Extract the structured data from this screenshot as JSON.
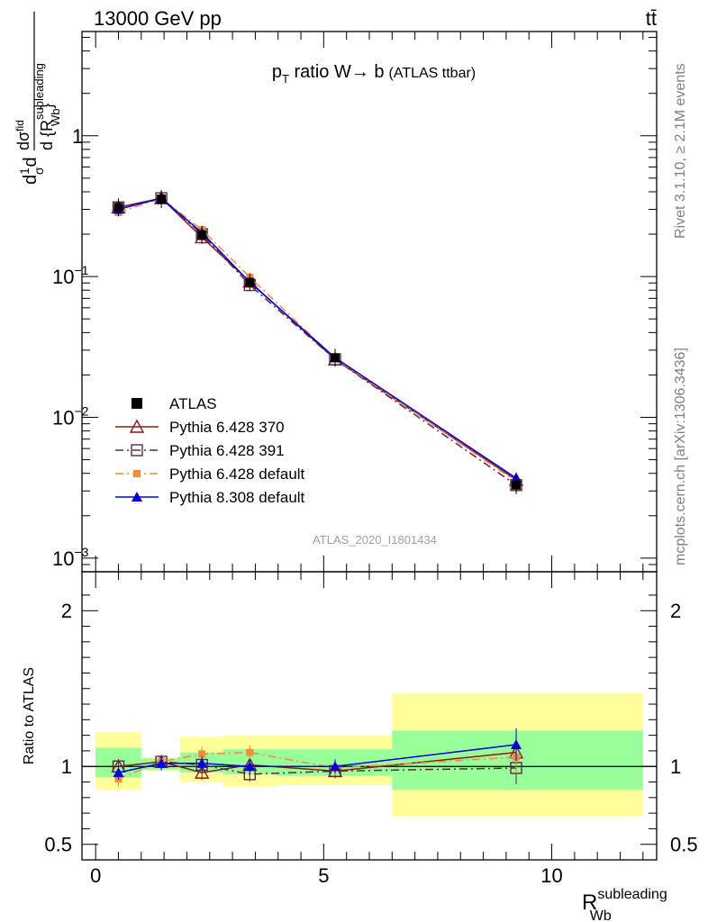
{
  "header": {
    "energy_label": "13000 GeV pp",
    "process_label": "tt̄"
  },
  "side_labels": {
    "rivet": "Rivet 3.1.10, ≥ 2.1M events",
    "mcplots": "mcplots.cern.ch [arXiv:1306.3436]"
  },
  "analysis_label": "ATLAS_2020_I1801434",
  "chart_data": [
    {
      "type": "line",
      "title_main": "p",
      "title_sub": "T",
      "title_rest": " ratio W→ b",
      "title_small": "(ATLAS ttbar)",
      "ylabel_parts": [
        "d",
        "1",
        "σ",
        "d",
        "dσ",
        "fid",
        "d {R",
        "subleading",
        "Wb",
        "}"
      ],
      "yscale": "log",
      "ylim": [
        0.0008,
        5.5
      ],
      "xlim": [
        -0.3,
        12.3
      ],
      "y_ticks": [
        {
          "value": 1,
          "label": "1"
        },
        {
          "value": 0.1,
          "label": "10",
          "exp": "−1"
        },
        {
          "value": 0.01,
          "label": "10",
          "exp": "−2"
        },
        {
          "value": 0.001,
          "label": "10",
          "exp": "−3"
        }
      ],
      "legend_position": "lower-left",
      "legend": [
        {
          "name": "ATLAS",
          "color": "#000000",
          "marker": "square-filled",
          "line": "none"
        },
        {
          "name": "Pythia 6.428 370",
          "color": "#8b1a1a",
          "marker": "triangle-open",
          "line": "solid"
        },
        {
          "name": "Pythia 6.428 391",
          "color": "#5a2a45",
          "marker": "square-open",
          "line": "dashdot"
        },
        {
          "name": "Pythia 6.428 default",
          "color": "#f28c38",
          "marker": "square-filled-small",
          "line": "dashdot"
        },
        {
          "name": "Pythia 8.308 default",
          "color": "#0000e0",
          "marker": "triangle-filled",
          "line": "solid"
        }
      ],
      "x": [
        0.5,
        1.44,
        2.33,
        3.38,
        5.25,
        9.22
      ],
      "data": {
        "name": "ATLAS",
        "values": [
          0.31,
          0.355,
          0.198,
          0.091,
          0.0265,
          0.0033
        ]
      },
      "series": [
        {
          "name": "Pythia 6.428 370",
          "values": [
            0.31,
            0.36,
            0.19,
            0.092,
            0.0258,
            0.0036
          ]
        },
        {
          "name": "Pythia 6.428 391",
          "values": [
            0.31,
            0.36,
            0.2,
            0.087,
            0.0258,
            0.0033
          ]
        },
        {
          "name": "Pythia 6.428 default",
          "values": [
            0.285,
            0.36,
            0.215,
            0.099,
            0.0262,
            0.0035
          ]
        },
        {
          "name": "Pythia 8.308 default",
          "values": [
            0.3,
            0.36,
            0.205,
            0.091,
            0.0265,
            0.0037
          ]
        }
      ]
    },
    {
      "type": "line",
      "ylabel": "Ratio to ATLAS",
      "xlabel_main": "R",
      "xlabel_sup": "subleading",
      "xlabel_sub": "Wb",
      "ylim": [
        0.4,
        2.25
      ],
      "xlim": [
        -0.3,
        12.3
      ],
      "x_ticks": [
        0,
        5,
        10
      ],
      "y_ticks": [
        0.5,
        1,
        2
      ],
      "uncertainty_bands": [
        {
          "x_low": 0.0,
          "x_high": 1.0,
          "yellow": [
            0.85,
            1.22
          ],
          "green": [
            0.93,
            1.12
          ]
        },
        {
          "x_low": 1.0,
          "x_high": 1.85,
          "yellow": [
            0.97,
            1.06
          ],
          "green": [
            0.98,
            1.05
          ]
        },
        {
          "x_low": 1.85,
          "x_high": 2.8,
          "yellow": [
            0.9,
            1.19
          ],
          "green": [
            0.96,
            1.09
          ]
        },
        {
          "x_low": 2.8,
          "x_high": 3.95,
          "yellow": [
            0.87,
            1.2
          ],
          "green": [
            0.95,
            1.11
          ]
        },
        {
          "x_low": 3.95,
          "x_high": 6.5,
          "yellow": [
            0.88,
            1.2
          ],
          "green": [
            0.94,
            1.11
          ]
        },
        {
          "x_low": 6.5,
          "x_high": 12.0,
          "yellow": [
            0.68,
            1.47
          ],
          "green": [
            0.85,
            1.23
          ]
        }
      ],
      "x": [
        0.5,
        1.44,
        2.33,
        3.38,
        5.25,
        9.22
      ],
      "series": [
        {
          "name": "Pythia 6.428 370",
          "values": [
            1.0,
            1.03,
            0.96,
            1.01,
            0.97,
            1.09
          ]
        },
        {
          "name": "Pythia 6.428 391",
          "values": [
            1.0,
            1.03,
            1.01,
            0.95,
            0.97,
            0.99
          ]
        },
        {
          "name": "Pythia 6.428 default",
          "values": [
            0.92,
            1.03,
            1.08,
            1.09,
            0.99,
            1.06
          ]
        },
        {
          "name": "Pythia 8.308 default",
          "values": [
            0.96,
            1.02,
            1.02,
            1.0,
            1.0,
            1.14
          ]
        }
      ]
    }
  ]
}
